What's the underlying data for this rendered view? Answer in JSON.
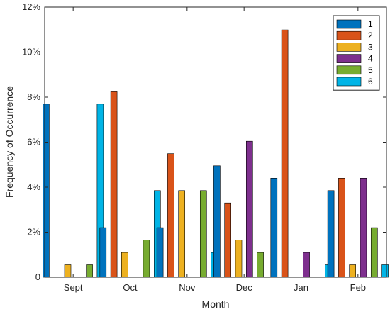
{
  "chart_data": {
    "type": "bar",
    "categories": [
      "Sept",
      "Oct",
      "Nov",
      "Dec",
      "Jan",
      "Feb"
    ],
    "series": [
      {
        "name": "1",
        "color": "#0072BD",
        "values": [
          7.69,
          2.2,
          2.2,
          4.95,
          4.4,
          3.85
        ]
      },
      {
        "name": "2",
        "color": "#D95319",
        "values": [
          0,
          8.24,
          5.49,
          3.3,
          10.99,
          4.4
        ]
      },
      {
        "name": "3",
        "color": "#EDB120",
        "values": [
          0.55,
          1.1,
          3.85,
          1.65,
          0,
          0.55
        ]
      },
      {
        "name": "4",
        "color": "#7E2F8E",
        "values": [
          0,
          0,
          0,
          6.04,
          1.1,
          4.4
        ]
      },
      {
        "name": "5",
        "color": "#77AC30",
        "values": [
          0.55,
          1.65,
          3.85,
          1.1,
          0,
          2.2
        ]
      },
      {
        "name": "6",
        "color": "#00B4E6",
        "values": [
          7.69,
          3.85,
          1.1,
          0,
          0.55,
          0.55
        ]
      }
    ],
    "xlabel": "Month",
    "ylabel": "Frequency of Occurrence",
    "ylim": [
      0,
      12
    ],
    "yticks": [
      "0",
      "2%",
      "4%",
      "6%",
      "8%",
      "10%",
      "12%"
    ],
    "grid": false,
    "legend_position": "top-right"
  }
}
